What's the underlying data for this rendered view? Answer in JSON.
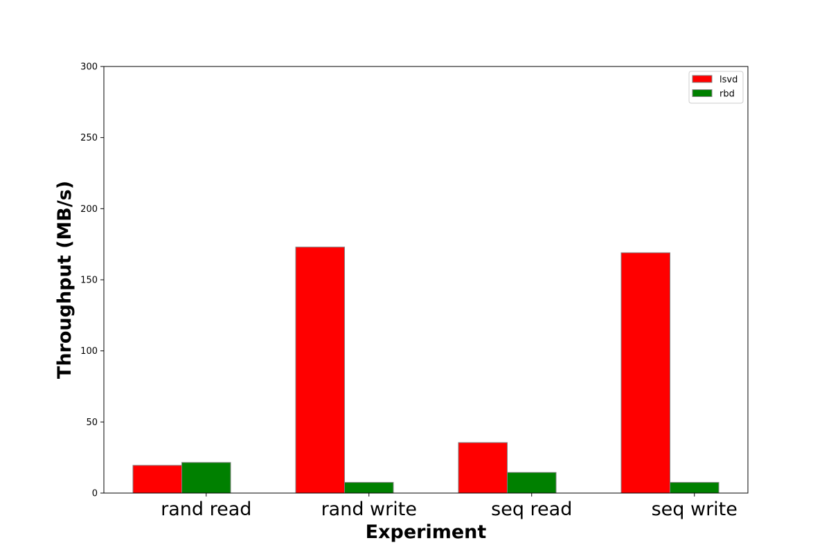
{
  "chart_data": {
    "type": "bar",
    "title": "",
    "xlabel": "Experiment",
    "ylabel": "Throughput (MB/s)",
    "ylim": [
      0,
      300
    ],
    "yticks": [
      0,
      50,
      100,
      150,
      200,
      250,
      300
    ],
    "grid": false,
    "legend_position": "top-right",
    "categories": [
      "rand read",
      "rand write",
      "seq read",
      "seq write"
    ],
    "series": [
      {
        "name": "lsvd",
        "color": "#ff0000",
        "values": [
          19.5,
          173,
          35.5,
          169
        ]
      },
      {
        "name": "rbd",
        "color": "#008000",
        "values": [
          21.5,
          7.5,
          14.5,
          7.5
        ]
      }
    ]
  }
}
